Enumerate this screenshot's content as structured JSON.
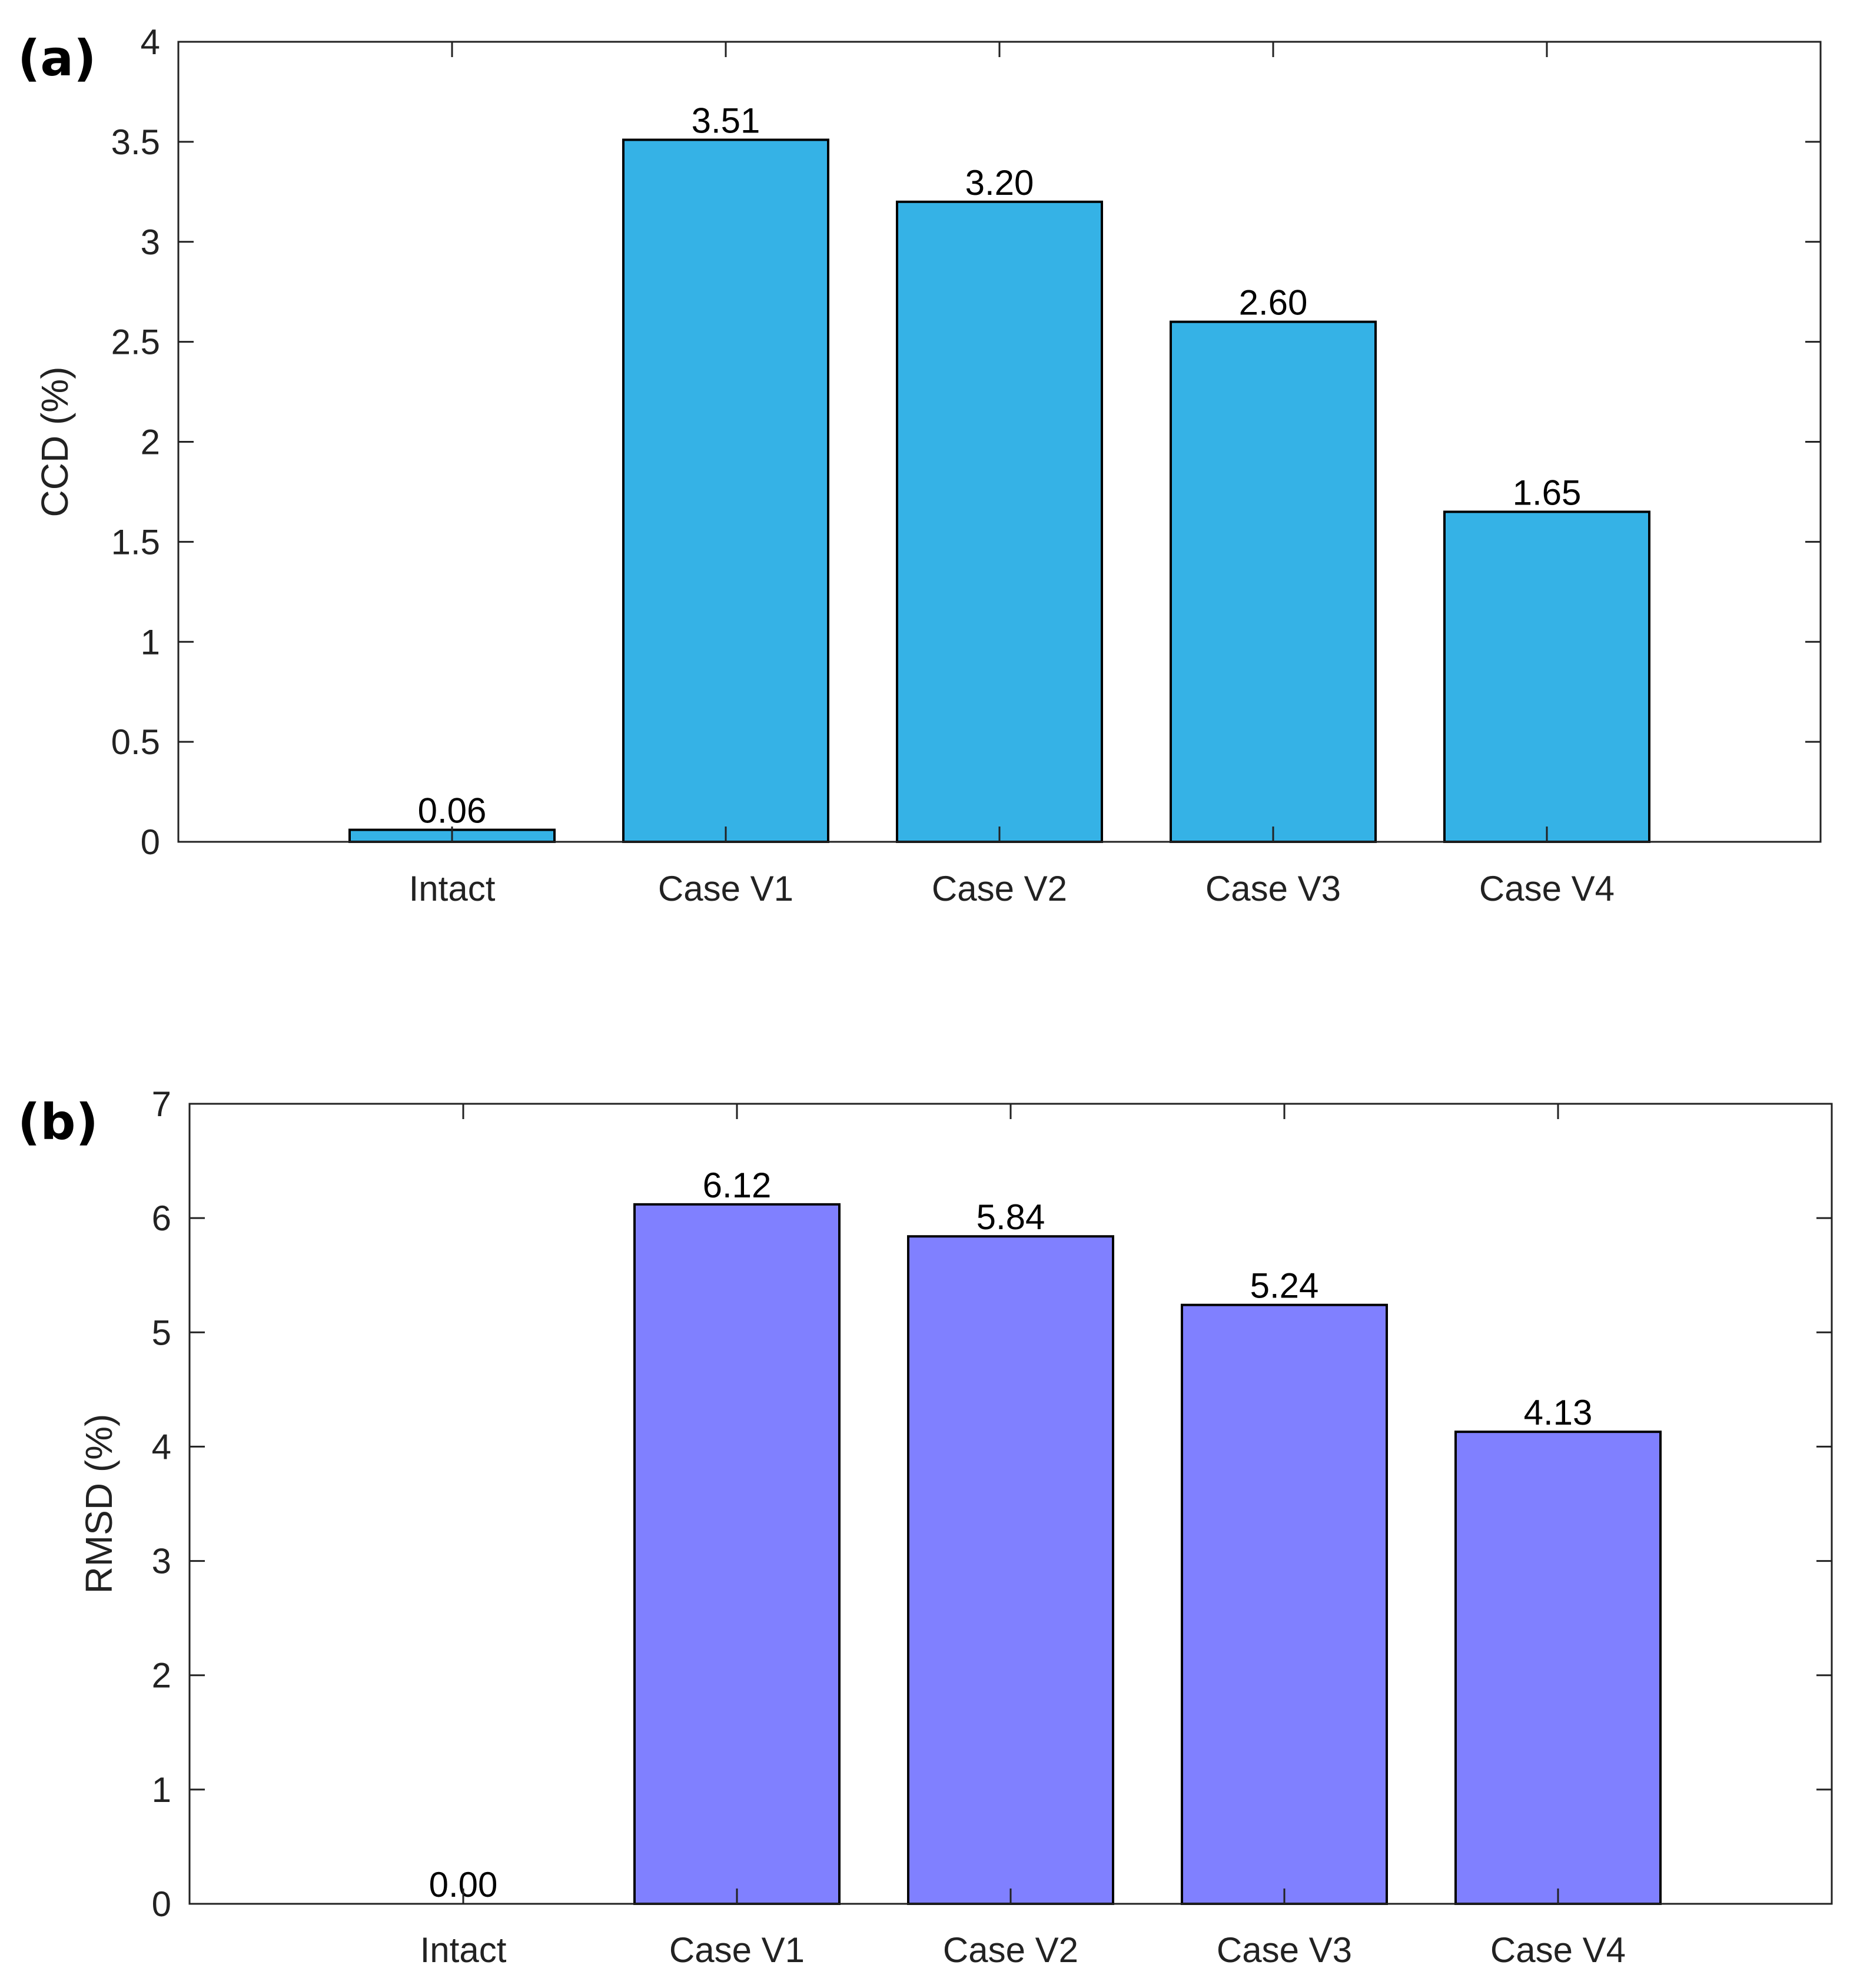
{
  "chart_data": [
    {
      "type": "bar",
      "panel_label": "(a)",
      "categories": [
        "Intact",
        "Case V1",
        "Case V2",
        "Case V3",
        "Case V4"
      ],
      "values": [
        0.06,
        3.51,
        3.2,
        2.6,
        1.65
      ],
      "value_labels": [
        "0.06",
        "3.51",
        "3.20",
        "2.60",
        "1.65"
      ],
      "ylabel": "CCD (%)",
      "xlabel": "",
      "title": "",
      "ylim": [
        0,
        4
      ],
      "xlim": [
        0,
        6
      ],
      "y_ticks": [
        0,
        0.5,
        1,
        1.5,
        2,
        2.5,
        3,
        3.5,
        4
      ],
      "y_tick_labels": [
        "0",
        "0.5",
        "1",
        "1.5",
        "2",
        "2.5",
        "3",
        "3.5",
        "4"
      ],
      "bar_color": "#35B2E6",
      "grid": false
    },
    {
      "type": "bar",
      "panel_label": "(b)",
      "categories": [
        "Intact",
        "Case V1",
        "Case V2",
        "Case V3",
        "Case V4"
      ],
      "values": [
        0.0,
        6.12,
        5.84,
        5.24,
        4.13
      ],
      "value_labels": [
        "0.00",
        "6.12",
        "5.84",
        "5.24",
        "4.13"
      ],
      "ylabel": "RMSD (%)",
      "xlabel": "",
      "title": "",
      "ylim": [
        0,
        7
      ],
      "xlim": [
        0,
        6
      ],
      "y_ticks": [
        0,
        1,
        2,
        3,
        4,
        5,
        6,
        7
      ],
      "y_tick_labels": [
        "0",
        "1",
        "2",
        "3",
        "4",
        "5",
        "6",
        "7"
      ],
      "bar_color": "#8080FF",
      "grid": false
    }
  ]
}
